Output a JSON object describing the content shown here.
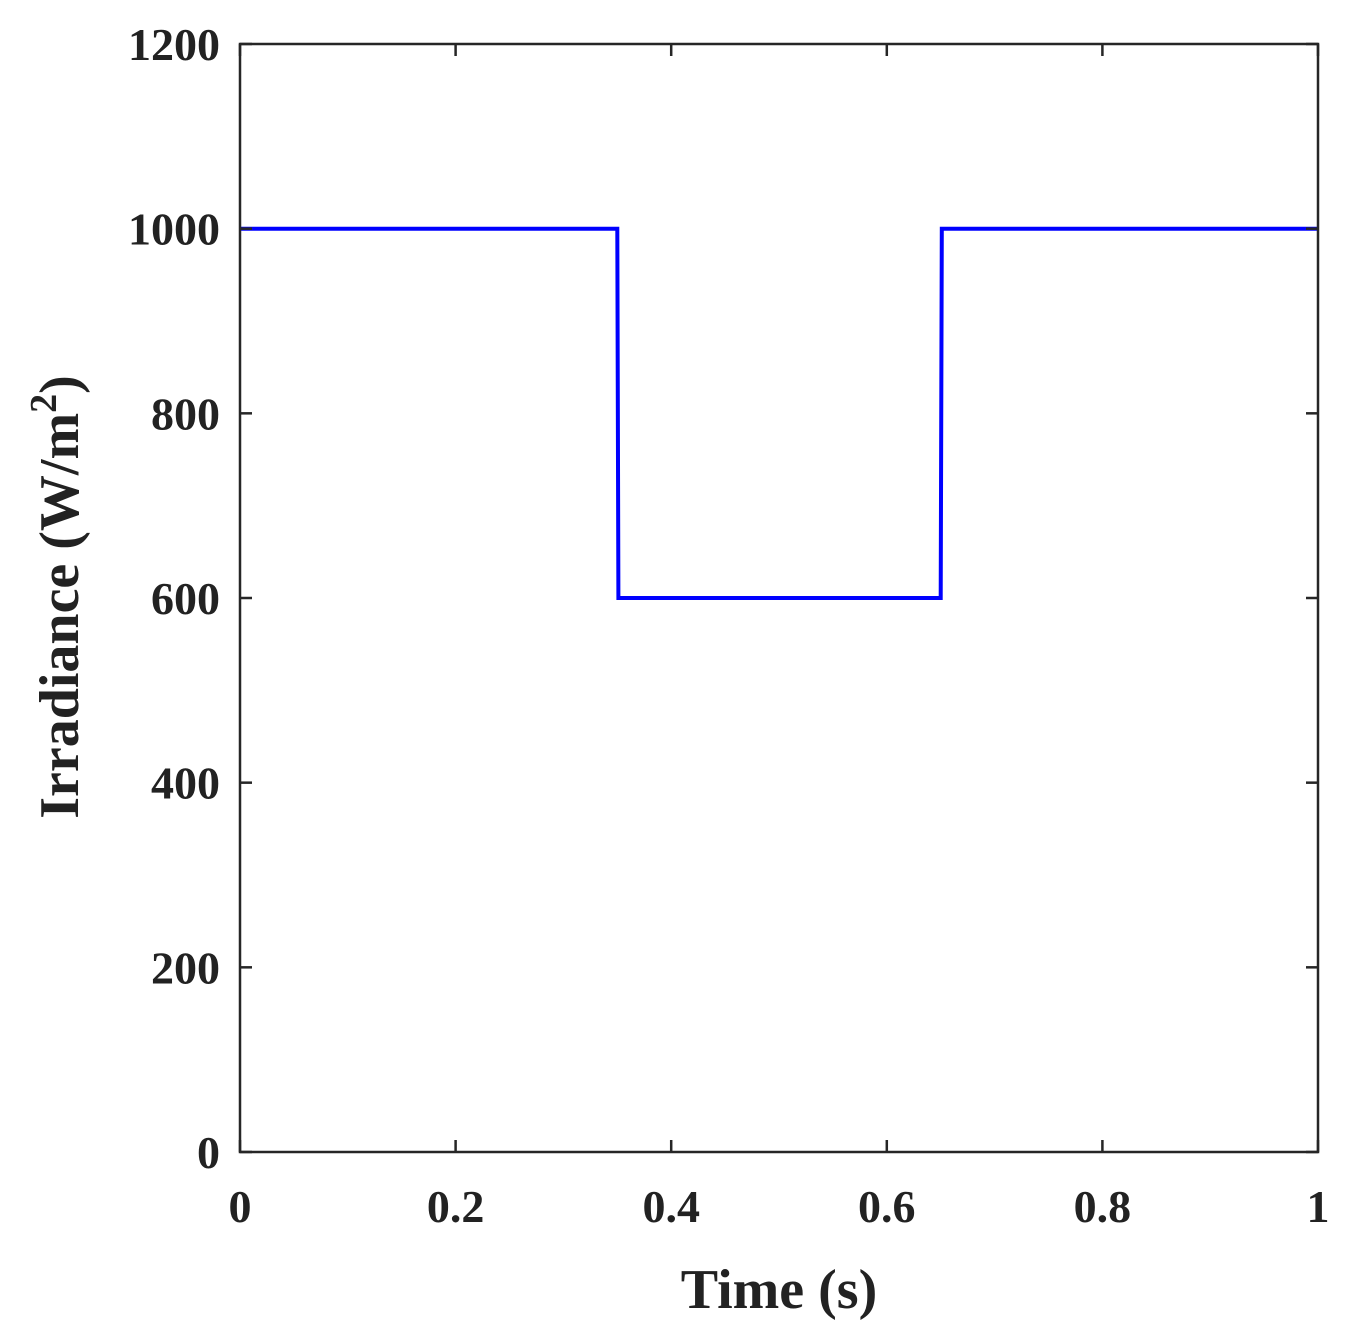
{
  "chart_data": {
    "type": "line",
    "xlabel": "Time (s)",
    "ylabel": {
      "main": "Irradiance (W/m",
      "superscript": "2",
      "close": ")"
    },
    "xlim": [
      0,
      1
    ],
    "ylim": [
      0,
      1200
    ],
    "xticks": [
      0,
      0.2,
      0.4,
      0.6,
      0.8,
      1
    ],
    "xtick_labels": [
      "0",
      "0.2",
      "0.4",
      "0.6",
      "0.8",
      "1"
    ],
    "yticks": [
      0,
      200,
      400,
      600,
      800,
      1000,
      1200
    ],
    "ytick_labels": [
      "0",
      "200",
      "400",
      "600",
      "800",
      "1000",
      "1200"
    ],
    "grid": false,
    "series": [
      {
        "color": "#0000ff",
        "x": [
          0,
          0.35,
          0.351,
          0.65,
          0.651,
          1
        ],
        "y": [
          1000,
          1000,
          600,
          600,
          1000,
          1000
        ]
      }
    ]
  }
}
